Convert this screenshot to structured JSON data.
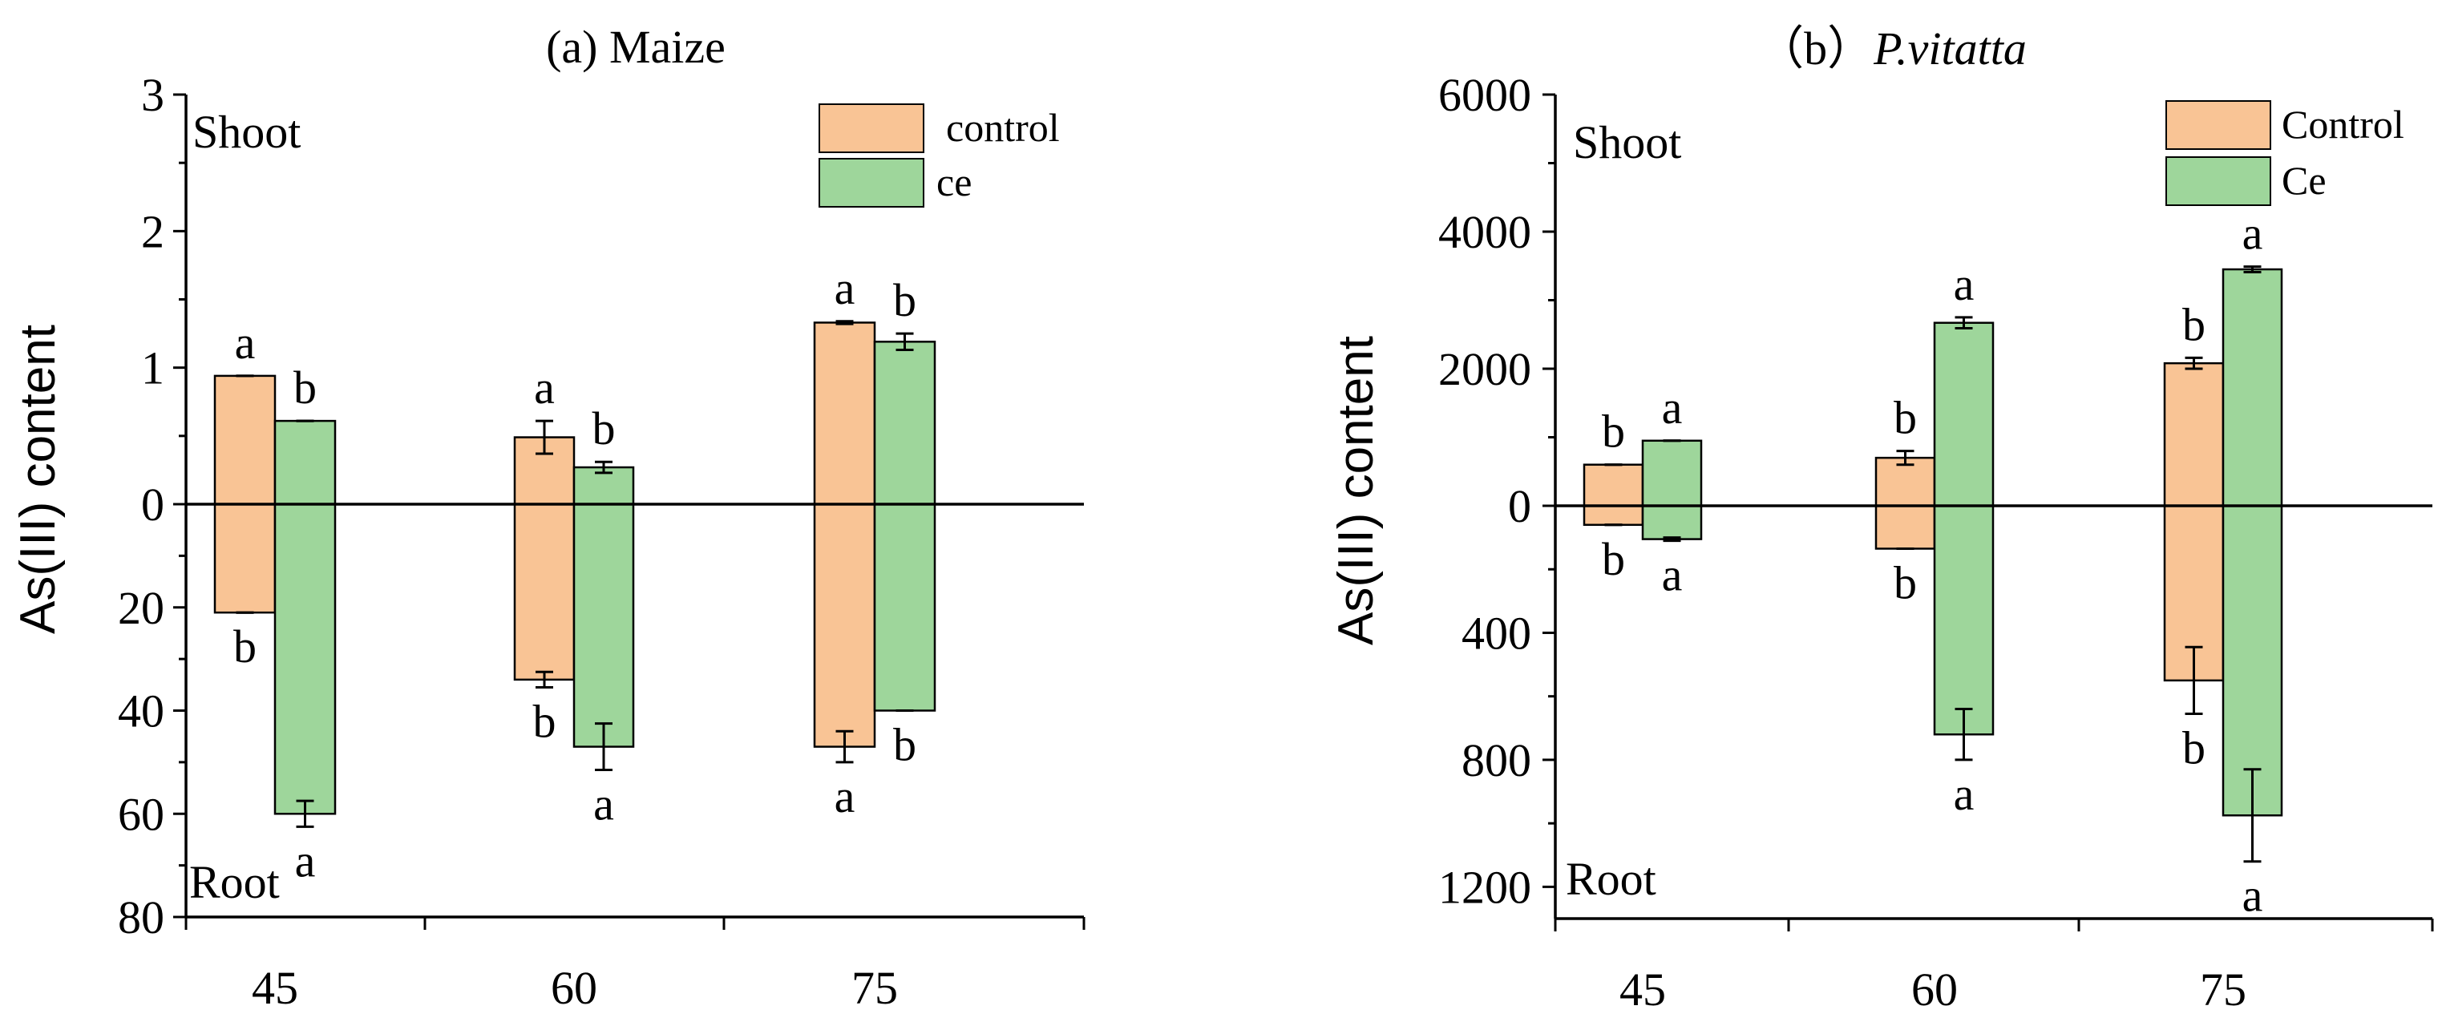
{
  "colors": {
    "control": "#f9c495",
    "ce": "#9ed69b",
    "axis": "#000000"
  },
  "chart_data": [
    {
      "type": "bar",
      "title": "(a) Maize",
      "ylabel": "As(III) content",
      "xlabel": "",
      "shoot_label": "Shoot",
      "root_label": "Root",
      "categories": [
        "45",
        "60",
        "75"
      ],
      "shoot": {
        "ylim": [
          0,
          3
        ],
        "ticks": [
          {
            "v": 0,
            "label": "0"
          },
          {
            "v": 1,
            "label": "1"
          },
          {
            "v": 2,
            "label": "2"
          },
          {
            "v": 3,
            "label": "3"
          }
        ],
        "series": [
          {
            "name": "control",
            "values": [
              0.94,
              0.49,
              1.33
            ],
            "errors": [
              0,
              0.12,
              0.01
            ],
            "letters": [
              "a",
              "a",
              "a"
            ]
          },
          {
            "name": "ce",
            "values": [
              0.61,
              0.27,
              1.19
            ],
            "errors": [
              0,
              0.04,
              0.06
            ],
            "letters": [
              "b",
              "b",
              "b"
            ]
          }
        ]
      },
      "root": {
        "ylim": [
          0,
          80
        ],
        "ticks": [
          {
            "v": 20,
            "label": "20"
          },
          {
            "v": 40,
            "label": "40"
          },
          {
            "v": 60,
            "label": "60"
          },
          {
            "v": 80,
            "label": "80"
          }
        ],
        "series": [
          {
            "name": "control",
            "values": [
              21,
              34,
              47
            ],
            "errors": [
              0,
              1.5,
              3
            ],
            "letters": [
              "b",
              "b",
              "a"
            ]
          },
          {
            "name": "ce",
            "values": [
              60,
              47,
              40
            ],
            "errors": [
              2.5,
              4.5,
              0
            ],
            "letters": [
              "a",
              "a",
              "b"
            ]
          }
        ]
      },
      "legend": [
        "control",
        "ce"
      ]
    },
    {
      "type": "bar",
      "title_prefix": "（b）",
      "title_italic": "P.vitatta",
      "ylabel": "As(III) content",
      "xlabel": "",
      "shoot_label": "Shoot",
      "root_label": "Root",
      "categories": [
        "45",
        "60",
        "75"
      ],
      "shoot": {
        "ylim": [
          0,
          6000
        ],
        "ticks": [
          {
            "v": 0,
            "label": "0"
          },
          {
            "v": 2000,
            "label": "2000"
          },
          {
            "v": 4000,
            "label": "4000"
          },
          {
            "v": 6000,
            "label": "6000"
          }
        ],
        "series": [
          {
            "name": "Control",
            "values": [
              600,
              700,
              2080
            ],
            "errors": [
              0,
              100,
              80
            ],
            "letters": [
              "b",
              "b",
              "b"
            ]
          },
          {
            "name": "Ce",
            "values": [
              950,
              2670,
              3450
            ],
            "errors": [
              0,
              80,
              40
            ],
            "letters": [
              "a",
              "a",
              "a"
            ]
          }
        ]
      },
      "root": {
        "ylim": [
          0,
          1300
        ],
        "ticks": [
          {
            "v": 400,
            "label": "400"
          },
          {
            "v": 800,
            "label": "800"
          },
          {
            "v": 1200,
            "label": "1200"
          }
        ],
        "series": [
          {
            "name": "Control",
            "values": [
              60,
              135,
              550
            ],
            "errors": [
              0,
              0,
              105
            ],
            "letters": [
              "b",
              "b",
              "b"
            ]
          },
          {
            "name": "Ce",
            "values": [
              105,
              720,
              975
            ],
            "errors": [
              5,
              80,
              145
            ],
            "letters": [
              "a",
              "a",
              "a"
            ]
          }
        ]
      },
      "legend": [
        "Control",
        "Ce"
      ]
    }
  ]
}
